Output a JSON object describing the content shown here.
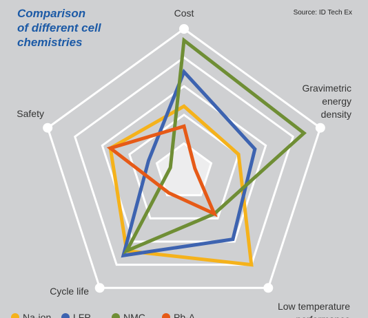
{
  "header": {
    "title_lines": [
      "Comparison",
      "of different cell",
      "chemistries"
    ],
    "source": "Source: ID Tech Ex"
  },
  "chart_data": {
    "type": "radar",
    "axes": [
      "Cost",
      "Gravimetric energy density",
      "Low temperature performance",
      "Cycle life",
      "Safety"
    ],
    "axis_label_lines": [
      [
        "Cost"
      ],
      [
        "Gravimetric",
        "energy",
        "density"
      ],
      [
        "Low temperature",
        "performance"
      ],
      [
        "Cycle life"
      ],
      [
        "Safety"
      ]
    ],
    "scale": [
      0,
      5
    ],
    "rings": 5,
    "series": [
      {
        "name": "Na-ion",
        "color": "#f5b21b",
        "values": [
          2.3,
          2.0,
          4.0,
          3.4,
          2.7
        ]
      },
      {
        "name": "LFP",
        "color": "#3d63b0",
        "values": [
          3.5,
          2.6,
          2.9,
          3.6,
          1.3
        ]
      },
      {
        "name": "NMC",
        "color": "#6f8e35",
        "values": [
          4.6,
          4.4,
          1.8,
          3.4,
          0.5
        ]
      },
      {
        "name": "Pb-A",
        "color": "#e65a17",
        "values": [
          1.6,
          0.4,
          1.8,
          0.9,
          2.7
        ]
      }
    ],
    "legend_position": "bottom"
  }
}
